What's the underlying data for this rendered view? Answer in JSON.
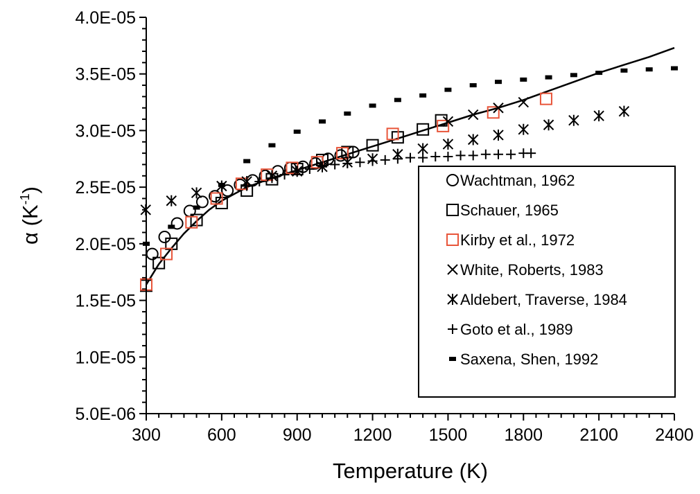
{
  "chart_data": {
    "type": "scatter",
    "xlabel": "Temperature (K)",
    "ylabel": {
      "symbol": "α",
      "open": " (K",
      "sup": "-1",
      "close": ")"
    },
    "xlim": [
      300,
      2400
    ],
    "ylim": [
      5e-06,
      4e-05
    ],
    "x_ticks": [
      {
        "value": 300,
        "label": "300"
      },
      {
        "value": 600,
        "label": "600"
      },
      {
        "value": 900,
        "label": "900"
      },
      {
        "value": 1200,
        "label": "1200"
      },
      {
        "value": 1500,
        "label": "1500"
      },
      {
        "value": 1800,
        "label": "1800"
      },
      {
        "value": 2100,
        "label": "2100"
      },
      {
        "value": 2400,
        "label": "2400"
      }
    ],
    "y_ticks": [
      {
        "value": 5e-06,
        "label": "5.0E-06"
      },
      {
        "value": 1e-05,
        "label": "1.0E-05"
      },
      {
        "value": 1.5e-05,
        "label": "1.5E-05"
      },
      {
        "value": 2e-05,
        "label": "2.0E-05"
      },
      {
        "value": 2.5e-05,
        "label": "2.5E-05"
      },
      {
        "value": 3e-05,
        "label": "3.0E-05"
      },
      {
        "value": 3.5e-05,
        "label": "3.5E-05"
      },
      {
        "value": 4e-05,
        "label": "4.0E-05"
      }
    ],
    "x_minor_step": 50,
    "y_minor_step": 1e-06,
    "grid": false,
    "legend_position": "lower-right",
    "series": [
      {
        "name": "Wachtman, 1962",
        "marker": "circle",
        "color": "#000000",
        "points": [
          [
            324,
            1.91e-05
          ],
          [
            373,
            2.06e-05
          ],
          [
            423,
            2.18e-05
          ],
          [
            473,
            2.29e-05
          ],
          [
            523,
            2.37e-05
          ],
          [
            573,
            2.42e-05
          ],
          [
            623,
            2.47e-05
          ],
          [
            673,
            2.52e-05
          ],
          [
            723,
            2.56e-05
          ],
          [
            773,
            2.6e-05
          ],
          [
            823,
            2.64e-05
          ],
          [
            873,
            2.67e-05
          ],
          [
            923,
            2.68e-05
          ],
          [
            973,
            2.71e-05
          ],
          [
            1023,
            2.75e-05
          ],
          [
            1073,
            2.78e-05
          ],
          [
            1123,
            2.81e-05
          ]
        ]
      },
      {
        "name": "Schauer, 1965",
        "marker": "square",
        "color": "#000000",
        "points": [
          [
            300,
            1.63e-05
          ],
          [
            350,
            1.83e-05
          ],
          [
            400,
            2e-05
          ],
          [
            500,
            2.21e-05
          ],
          [
            600,
            2.36e-05
          ],
          [
            700,
            2.47e-05
          ],
          [
            800,
            2.57e-05
          ],
          [
            900,
            2.66e-05
          ],
          [
            1000,
            2.74e-05
          ],
          [
            1100,
            2.81e-05
          ],
          [
            1200,
            2.87e-05
          ],
          [
            1300,
            2.94e-05
          ],
          [
            1400,
            3.01e-05
          ],
          [
            1473,
            3.09e-05
          ]
        ]
      },
      {
        "name": "Kirby et al., 1972",
        "marker": "square",
        "color": "#e8553a",
        "points": [
          [
            300,
            1.64e-05
          ],
          [
            380,
            1.91e-05
          ],
          [
            480,
            2.19e-05
          ],
          [
            580,
            2.4e-05
          ],
          [
            680,
            2.53e-05
          ],
          [
            780,
            2.61e-05
          ],
          [
            880,
            2.67e-05
          ],
          [
            980,
            2.72e-05
          ],
          [
            1080,
            2.8e-05
          ],
          [
            1280,
            2.97e-05
          ],
          [
            1480,
            3.04e-05
          ],
          [
            1680,
            3.16e-05
          ],
          [
            1890,
            3.28e-05
          ]
        ]
      },
      {
        "name": "White, Roberts, 1983",
        "marker": "x",
        "color": "#000000",
        "points": [
          [
            1500,
            3.08e-05
          ],
          [
            1600,
            3.14e-05
          ],
          [
            1700,
            3.2e-05
          ],
          [
            1800,
            3.25e-05
          ]
        ]
      },
      {
        "name": "Aldebert, Traverse, 1984",
        "marker": "asterisk",
        "color": "#000000",
        "points": [
          [
            298,
            2.3e-05
          ],
          [
            400,
            2.38e-05
          ],
          [
            500,
            2.45e-05
          ],
          [
            600,
            2.51e-05
          ],
          [
            700,
            2.55e-05
          ],
          [
            800,
            2.6e-05
          ],
          [
            900,
            2.64e-05
          ],
          [
            1000,
            2.68e-05
          ],
          [
            1100,
            2.72e-05
          ],
          [
            1200,
            2.75e-05
          ],
          [
            1300,
            2.79e-05
          ],
          [
            1400,
            2.84e-05
          ],
          [
            1500,
            2.88e-05
          ],
          [
            1600,
            2.92e-05
          ],
          [
            1700,
            2.96e-05
          ],
          [
            1800,
            3.01e-05
          ],
          [
            1900,
            3.05e-05
          ],
          [
            2000,
            3.09e-05
          ],
          [
            2100,
            3.13e-05
          ],
          [
            2200,
            3.17e-05
          ]
        ]
      },
      {
        "name": "Goto et al., 1989",
        "marker": "plus",
        "color": "#000000",
        "points": [
          [
            700,
            2.51e-05
          ],
          [
            750,
            2.55e-05
          ],
          [
            800,
            2.58e-05
          ],
          [
            850,
            2.61e-05
          ],
          [
            900,
            2.64e-05
          ],
          [
            950,
            2.66e-05
          ],
          [
            1000,
            2.68e-05
          ],
          [
            1050,
            2.7e-05
          ],
          [
            1100,
            2.71e-05
          ],
          [
            1150,
            2.72e-05
          ],
          [
            1200,
            2.73e-05
          ],
          [
            1250,
            2.74e-05
          ],
          [
            1300,
            2.75e-05
          ],
          [
            1350,
            2.76e-05
          ],
          [
            1400,
            2.76e-05
          ],
          [
            1450,
            2.77e-05
          ],
          [
            1500,
            2.77e-05
          ],
          [
            1550,
            2.78e-05
          ],
          [
            1600,
            2.78e-05
          ],
          [
            1650,
            2.79e-05
          ],
          [
            1700,
            2.79e-05
          ],
          [
            1750,
            2.79e-05
          ],
          [
            1800,
            2.8e-05
          ],
          [
            1830,
            2.8e-05
          ]
        ]
      },
      {
        "name": "Saxena, Shen, 1992",
        "marker": "dash",
        "color": "#000000",
        "points": [
          [
            300,
            2e-05
          ],
          [
            400,
            2.15e-05
          ],
          [
            500,
            2.32e-05
          ],
          [
            600,
            2.52e-05
          ],
          [
            700,
            2.73e-05
          ],
          [
            800,
            2.87e-05
          ],
          [
            900,
            2.99e-05
          ],
          [
            1000,
            3.08e-05
          ],
          [
            1100,
            3.15e-05
          ],
          [
            1200,
            3.22e-05
          ],
          [
            1300,
            3.27e-05
          ],
          [
            1400,
            3.31e-05
          ],
          [
            1500,
            3.36e-05
          ],
          [
            1600,
            3.4e-05
          ],
          [
            1700,
            3.43e-05
          ],
          [
            1800,
            3.45e-05
          ],
          [
            1900,
            3.47e-05
          ],
          [
            2000,
            3.49e-05
          ],
          [
            2100,
            3.51e-05
          ],
          [
            2200,
            3.53e-05
          ],
          [
            2300,
            3.54e-05
          ],
          [
            2400,
            3.55e-05
          ]
        ]
      }
    ],
    "fit_curve": {
      "type": "line",
      "color": "#000000",
      "points": [
        [
          300,
          1.64e-05
        ],
        [
          350,
          1.82e-05
        ],
        [
          400,
          1.96e-05
        ],
        [
          450,
          2.09e-05
        ],
        [
          500,
          2.2e-05
        ],
        [
          550,
          2.3e-05
        ],
        [
          600,
          2.38e-05
        ],
        [
          700,
          2.5e-05
        ],
        [
          800,
          2.58e-05
        ],
        [
          900,
          2.65e-05
        ],
        [
          1000,
          2.72e-05
        ],
        [
          1100,
          2.79e-05
        ],
        [
          1200,
          2.86e-05
        ],
        [
          1300,
          2.93e-05
        ],
        [
          1400,
          3e-05
        ],
        [
          1500,
          3.07e-05
        ],
        [
          1600,
          3.14e-05
        ],
        [
          1700,
          3.2e-05
        ],
        [
          1800,
          3.27e-05
        ],
        [
          1900,
          3.35e-05
        ],
        [
          2000,
          3.43e-05
        ],
        [
          2100,
          3.51e-05
        ],
        [
          2200,
          3.58e-05
        ],
        [
          2300,
          3.65e-05
        ],
        [
          2400,
          3.73e-05
        ]
      ]
    }
  }
}
